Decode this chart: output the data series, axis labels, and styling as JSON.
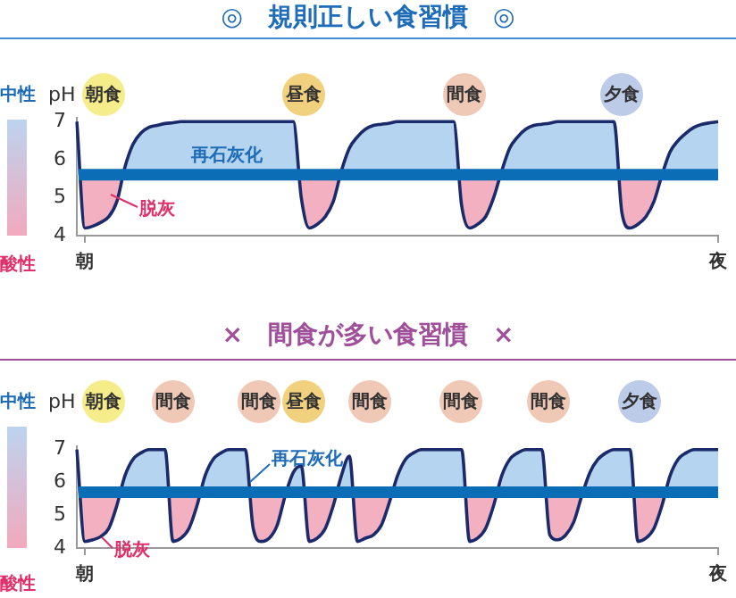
{
  "chart_data": [
    {
      "type": "area",
      "title": "◎　規則正しい食習慣　◎",
      "ylabel": "pH",
      "categories": [
        null,
        "朝",
        null,
        null,
        null,
        null,
        null,
        null,
        null,
        null,
        null,
        null,
        null,
        null,
        null,
        null,
        null,
        null,
        null,
        null,
        null,
        null,
        null,
        null,
        null,
        null,
        null,
        null,
        null,
        null,
        null,
        null,
        null,
        null,
        null,
        null,
        null,
        null,
        null,
        null,
        null,
        null,
        null,
        null,
        null,
        null,
        null,
        null,
        null,
        null,
        null,
        null,
        null,
        null,
        null,
        null,
        null,
        null,
        null,
        null,
        null,
        null,
        null,
        null,
        null,
        null,
        null,
        null,
        null,
        null,
        null,
        null,
        null,
        null,
        null,
        null,
        null,
        null,
        null,
        null,
        "夜"
      ],
      "series": [
        {
          "color": "#1b2a6b",
          "values": [
            7.0,
            4.2,
            4.25,
            4.35,
            4.5,
            4.9,
            5.8,
            6.4,
            6.7,
            6.85,
            6.9,
            6.95,
            6.97,
            7.0,
            7.0,
            7.0,
            7.0,
            7.0,
            7.0,
            7.0,
            7.0,
            7.0,
            7.0,
            7.0,
            7.0,
            7.0,
            7.0,
            7.0,
            5.0,
            4.2,
            4.3,
            4.5,
            4.9,
            5.7,
            6.3,
            6.6,
            6.8,
            6.9,
            6.93,
            6.96,
            7.0,
            7.0,
            7.0,
            7.0,
            7.0,
            7.0,
            7.0,
            7.0,
            4.8,
            4.2,
            4.3,
            4.5,
            5.0,
            5.7,
            6.3,
            6.6,
            6.8,
            6.9,
            6.93,
            6.96,
            7.0,
            7.0,
            7.0,
            7.0,
            7.0,
            7.0,
            7.0,
            7.0,
            4.6,
            4.2,
            4.3,
            4.5,
            4.9,
            5.6,
            6.2,
            6.5,
            6.7,
            6.85,
            6.93,
            6.97,
            7.0
          ]
        }
      ],
      "ylim": [
        4,
        7.1
      ],
      "yticks": [
        4,
        5,
        6,
        7
      ],
      "ref_lines": [
        {
          "axis": "y",
          "value": 5.6,
          "color": "#0b6db5"
        }
      ],
      "annotations": [
        "中性",
        "酸性",
        "朝食",
        "昼食",
        "間食",
        "夕食",
        "再石灰化",
        "脱灰"
      ]
    },
    {
      "type": "area",
      "title": "×　間食が多い食習慣　×",
      "ylabel": "pH",
      "categories": [
        null,
        "朝",
        null,
        null,
        null,
        null,
        null,
        null,
        null,
        null,
        null,
        null,
        null,
        null,
        null,
        null,
        null,
        null,
        null,
        null,
        null,
        null,
        null,
        null,
        null,
        null,
        null,
        null,
        null,
        null,
        null,
        null,
        null,
        null,
        null,
        null,
        null,
        null,
        null,
        null,
        null,
        null,
        null,
        null,
        null,
        null,
        null,
        null,
        null,
        null,
        null,
        null,
        null,
        null,
        null,
        null,
        null,
        null,
        null,
        null,
        null,
        null,
        null,
        null,
        null,
        null,
        null,
        null,
        null,
        null,
        null,
        null,
        null,
        null,
        null,
        null,
        null,
        null,
        null,
        null,
        "夜"
      ],
      "series": [
        {
          "color": "#1b2a6b",
          "values": [
            7.0,
            4.2,
            4.25,
            4.35,
            4.6,
            5.3,
            6.2,
            6.7,
            6.9,
            7.0,
            7.0,
            7.0,
            4.2,
            4.3,
            4.6,
            5.3,
            6.2,
            6.7,
            6.9,
            7.0,
            7.0,
            7.0,
            4.6,
            4.2,
            4.3,
            4.7,
            5.6,
            6.3,
            6.5,
            4.2,
            4.3,
            4.6,
            5.3,
            6.2,
            6.8,
            4.2,
            4.3,
            4.4,
            4.7,
            5.4,
            6.2,
            6.7,
            6.9,
            7.0,
            7.0,
            7.0,
            7.0,
            7.0,
            7.0,
            4.2,
            4.3,
            4.6,
            5.3,
            6.2,
            6.7,
            6.9,
            7.0,
            7.0,
            7.0,
            4.4,
            4.25,
            4.4,
            4.8,
            5.6,
            6.3,
            6.7,
            6.9,
            7.0,
            7.0,
            7.0,
            4.2,
            4.3,
            4.6,
            5.3,
            6.2,
            6.7,
            6.9,
            7.0,
            7.0,
            7.0,
            7.0
          ]
        }
      ],
      "ylim": [
        4,
        7.1
      ],
      "yticks": [
        4,
        5,
        6,
        7
      ],
      "ref_lines": [
        {
          "axis": "y",
          "value": 5.7,
          "color": "#0b6db5"
        }
      ],
      "annotations": [
        "中性",
        "酸性",
        "朝食",
        "間食",
        "間食",
        "昼食",
        "間食",
        "間食",
        "間食",
        "夕食",
        "再石灰化",
        "脱灰"
      ]
    }
  ]
}
